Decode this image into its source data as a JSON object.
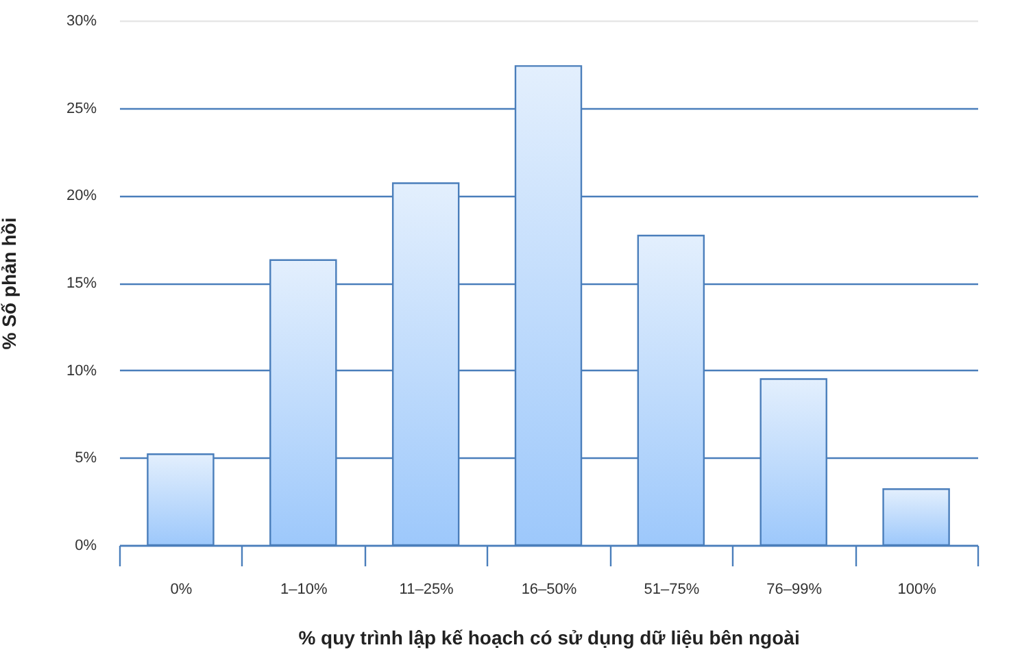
{
  "chart_data": {
    "type": "bar",
    "xlabel": "% quy trình lập kế hoạch có sử dụng dữ liệu bên ngoài",
    "ylabel": "% Số phản hồi",
    "categories": [
      "0%",
      "1–10%",
      "11–25%",
      "16–50%",
      "51–75%",
      "76–99%",
      "100%"
    ],
    "values": [
      5.2,
      16.3,
      20.7,
      27.4,
      17.7,
      9.5,
      3.2
    ],
    "color": "#4a7ebb",
    "ylim": [
      0,
      30
    ],
    "yticks": [
      {
        "value": 0,
        "label": "0%"
      },
      {
        "value": 5,
        "label": "5%"
      },
      {
        "value": 10,
        "label": "10%"
      },
      {
        "value": 15,
        "label": "15%"
      },
      {
        "value": 20,
        "label": "20%"
      },
      {
        "value": 25,
        "label": "25%"
      },
      {
        "value": 30,
        "label": "30%"
      }
    ],
    "grid": "y"
  }
}
